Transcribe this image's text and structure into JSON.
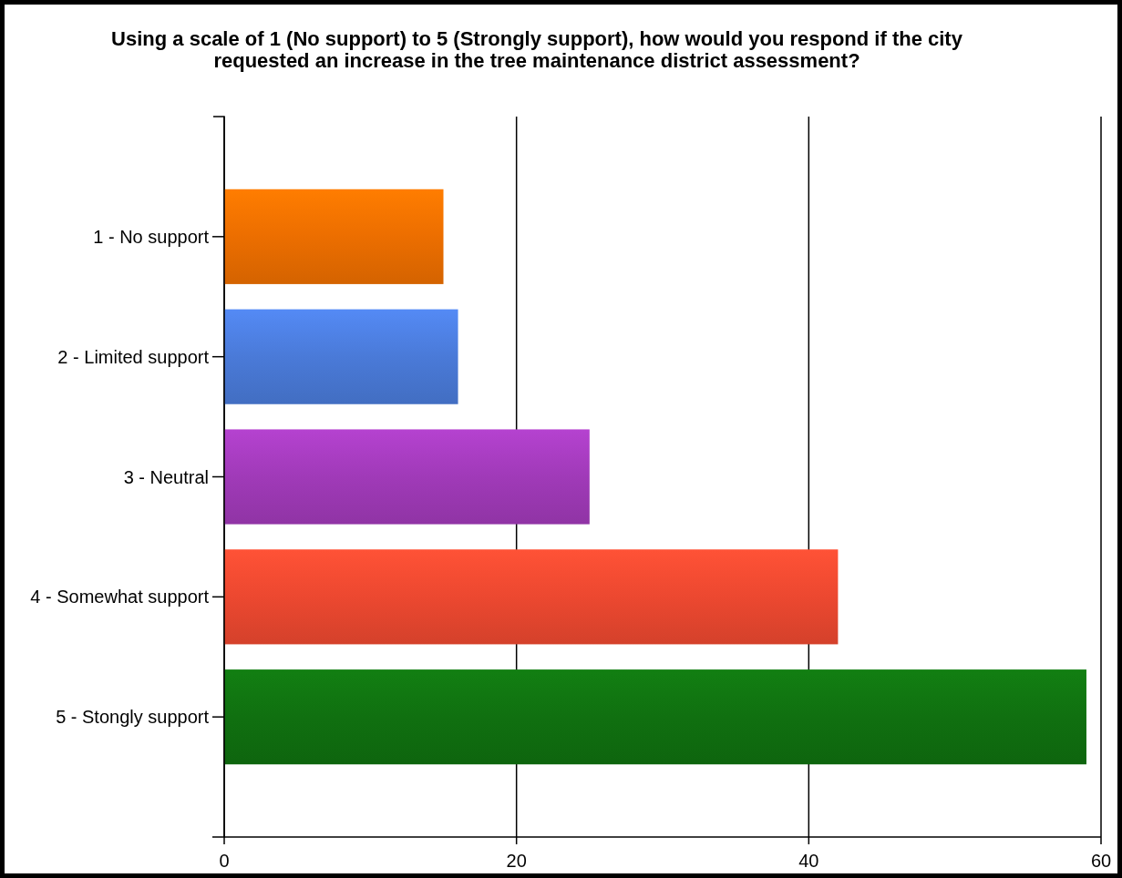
{
  "chart_data": {
    "type": "bar",
    "orientation": "horizontal",
    "title": "Using a scale of 1 (No support) to 5 (Strongly support), how would you respond if the city requested an increase in the tree maintenance district assessment?",
    "categories": [
      "1 - No support",
      "2 - Limited support",
      "3 - Neutral",
      "4 - Somewhat support",
      "5 - Stongly support"
    ],
    "values": [
      15,
      16,
      25,
      42,
      59
    ],
    "colors": [
      "#ec6e00",
      "#4a7ad8",
      "#a03ab8",
      "#ec4830",
      "#107010"
    ],
    "xlim": [
      0,
      60
    ],
    "xticks": [
      0,
      20,
      40,
      60
    ],
    "grid": "x"
  }
}
